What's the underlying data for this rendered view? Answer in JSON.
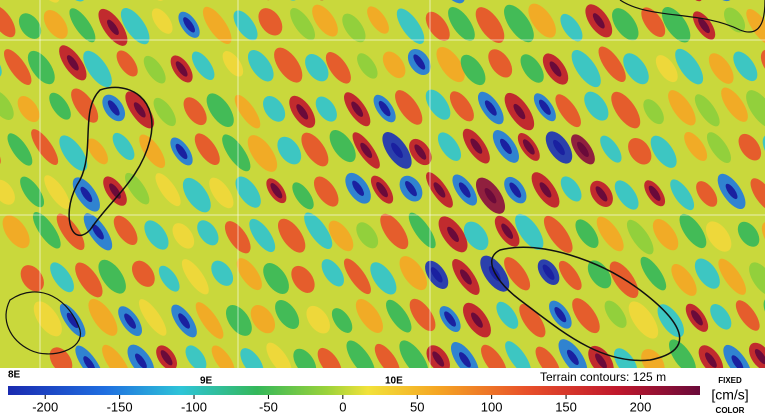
{
  "map": {
    "lon_labels": [
      "8E",
      "9E",
      "10E"
    ],
    "terrain_note": "Terrain contours: 125 m"
  },
  "colorbar": {
    "lim": [
      -225,
      240
    ],
    "ticks": [
      -200,
      -150,
      -100,
      -50,
      0,
      50,
      100,
      150,
      200
    ],
    "unit_top": "FIXED",
    "unit": "[cm/s]",
    "unit_bottom": "COLOR"
  }
}
